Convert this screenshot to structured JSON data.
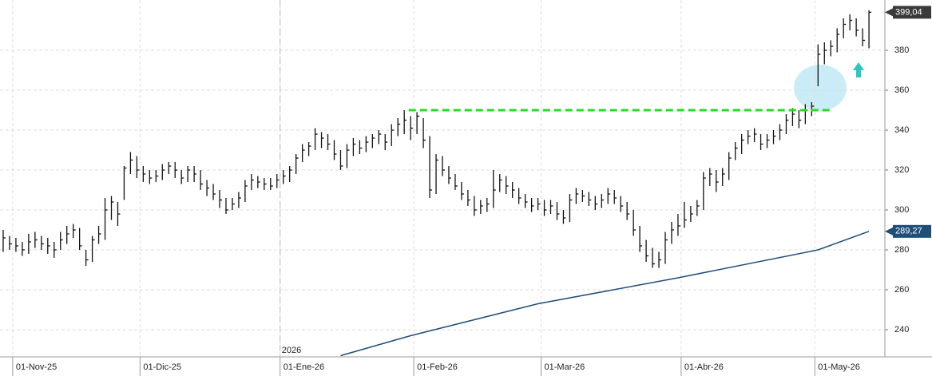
{
  "chart_data": {
    "type": "hlc",
    "ylim": [
      226.4,
      405.2
    ],
    "yticks": [
      240,
      260,
      280,
      300,
      320,
      340,
      360,
      380
    ],
    "xlim": [
      -0.5,
      138.5
    ],
    "xticks": [
      {
        "value": 2,
        "label": "01-Nov-25"
      },
      {
        "value": 22,
        "label": "01-Dic-25"
      },
      {
        "value": 44,
        "label": "01-Ene-26"
      },
      {
        "value": 65,
        "label": "01-Feb-26"
      },
      {
        "value": 85,
        "label": "01-Mar-26"
      },
      {
        "value": 107,
        "label": "01-Abr-26"
      },
      {
        "value": 128,
        "label": "01-May-26"
      }
    ],
    "year_marker": {
      "value": 44,
      "label": "2026"
    },
    "grid": true,
    "bar_color": "#111111",
    "bars": [
      [
        290,
        279,
        286
      ],
      [
        287,
        280,
        283
      ],
      [
        286,
        279,
        282
      ],
      [
        284,
        277,
        280
      ],
      [
        288,
        278,
        284
      ],
      [
        289,
        281,
        285
      ],
      [
        287,
        280,
        283
      ],
      [
        286,
        278,
        282
      ],
      [
        284,
        276,
        280
      ],
      [
        289,
        280,
        285
      ],
      [
        292,
        283,
        288
      ],
      [
        293,
        286,
        290
      ],
      [
        291,
        280,
        282
      ],
      [
        280,
        272,
        275
      ],
      [
        287,
        274,
        285
      ],
      [
        292,
        283,
        288
      ],
      [
        306,
        285,
        300
      ],
      [
        307,
        295,
        304
      ],
      [
        304,
        292,
        298
      ],
      [
        322,
        305,
        321
      ],
      [
        329,
        318,
        325
      ],
      [
        327,
        316,
        320
      ],
      [
        322,
        314,
        318
      ],
      [
        320,
        313,
        316
      ],
      [
        320,
        314,
        317
      ],
      [
        323,
        315,
        320
      ],
      [
        324,
        318,
        322
      ],
      [
        324,
        316,
        320
      ],
      [
        320,
        313,
        316
      ],
      [
        322,
        314,
        320
      ],
      [
        322,
        314,
        318
      ],
      [
        320,
        310,
        313
      ],
      [
        315,
        307,
        311
      ],
      [
        313,
        305,
        308
      ],
      [
        310,
        301,
        305
      ],
      [
        306,
        298,
        300
      ],
      [
        306,
        300,
        303
      ],
      [
        309,
        301,
        306
      ],
      [
        315,
        304,
        312
      ],
      [
        318,
        310,
        315
      ],
      [
        317,
        311,
        314
      ],
      [
        316,
        310,
        313
      ],
      [
        316,
        310,
        312
      ],
      [
        318,
        311,
        315
      ],
      [
        320,
        313,
        317
      ],
      [
        322,
        314,
        320
      ],
      [
        328,
        318,
        326
      ],
      [
        333,
        324,
        330
      ],
      [
        334,
        327,
        332
      ],
      [
        341,
        330,
        338
      ],
      [
        339,
        331,
        336
      ],
      [
        338,
        330,
        333
      ],
      [
        335,
        325,
        328
      ],
      [
        330,
        320,
        322
      ],
      [
        333,
        321,
        330
      ],
      [
        336,
        327,
        333
      ],
      [
        335,
        328,
        331
      ],
      [
        337,
        329,
        334
      ],
      [
        338,
        331,
        336
      ],
      [
        340,
        333,
        338
      ],
      [
        338,
        330,
        334
      ],
      [
        343,
        332,
        340
      ],
      [
        346,
        337,
        343
      ],
      [
        350,
        338,
        345
      ],
      [
        347,
        335,
        341
      ],
      [
        349,
        338,
        347
      ],
      [
        346,
        331,
        335
      ],
      [
        337,
        306,
        310
      ],
      [
        328,
        308,
        325
      ],
      [
        327,
        317,
        320
      ],
      [
        322,
        313,
        316
      ],
      [
        318,
        310,
        312
      ],
      [
        314,
        305,
        308
      ],
      [
        310,
        302,
        305
      ],
      [
        307,
        297,
        300
      ],
      [
        305,
        298,
        302
      ],
      [
        306,
        299,
        303
      ],
      [
        320,
        301,
        310
      ],
      [
        318,
        309,
        315
      ],
      [
        317,
        308,
        312
      ],
      [
        314,
        306,
        310
      ],
      [
        311,
        303,
        306
      ],
      [
        308,
        301,
        304
      ],
      [
        306,
        299,
        302
      ],
      [
        306,
        300,
        303
      ],
      [
        305,
        297,
        300
      ],
      [
        305,
        298,
        302
      ],
      [
        304,
        295,
        298
      ],
      [
        300,
        293,
        296
      ],
      [
        308,
        294,
        305
      ],
      [
        311,
        303,
        308
      ],
      [
        310,
        304,
        307
      ],
      [
        309,
        302,
        305
      ],
      [
        307,
        300,
        303
      ],
      [
        308,
        301,
        305
      ],
      [
        311,
        303,
        308
      ],
      [
        310,
        303,
        306
      ],
      [
        307,
        299,
        302
      ],
      [
        304,
        295,
        298
      ],
      [
        300,
        287,
        290
      ],
      [
        292,
        279,
        282
      ],
      [
        285,
        274,
        277
      ],
      [
        281,
        271,
        273
      ],
      [
        279,
        271,
        275
      ],
      [
        289,
        273,
        285
      ],
      [
        294,
        283,
        290
      ],
      [
        298,
        287,
        292
      ],
      [
        304,
        291,
        295
      ],
      [
        302,
        294,
        298
      ],
      [
        305,
        297,
        302
      ],
      [
        319,
        300,
        316
      ],
      [
        321,
        312,
        318
      ],
      [
        320,
        309,
        314
      ],
      [
        321,
        312,
        318
      ],
      [
        329,
        315,
        326
      ],
      [
        334,
        325,
        331
      ],
      [
        338,
        328,
        335
      ],
      [
        340,
        333,
        337
      ],
      [
        341,
        334,
        338
      ],
      [
        338,
        330,
        333
      ],
      [
        338,
        331,
        335
      ],
      [
        340,
        333,
        337
      ],
      [
        343,
        335,
        340
      ],
      [
        348,
        338,
        345
      ],
      [
        351,
        342,
        348
      ],
      [
        350,
        341,
        345
      ],
      [
        353,
        343,
        350
      ],
      [
        354,
        347,
        352
      ],
      [
        383,
        362,
        378
      ],
      [
        384,
        373,
        380
      ],
      [
        385,
        377,
        382
      ],
      [
        391,
        379,
        388
      ],
      [
        396,
        386,
        393
      ],
      [
        398,
        390,
        395
      ],
      [
        396,
        387,
        390
      ],
      [
        391,
        382,
        385
      ],
      [
        400,
        381,
        399.04
      ]
    ],
    "moving_average": {
      "color": "#1f4e79",
      "x": [
        53,
        64,
        84,
        106,
        128,
        136
      ],
      "values": [
        227,
        237,
        253,
        266,
        280,
        289.27
      ]
    },
    "last_labels": [
      {
        "value": 399.04,
        "label": "399,04",
        "color": "#3a3a3a"
      },
      {
        "value": 289.27,
        "label": "289,27",
        "color": "#1f4e79"
      }
    ],
    "resistance": {
      "value": 350,
      "x": [
        63.7,
        130
      ],
      "color": "#22dd22"
    }
  }
}
